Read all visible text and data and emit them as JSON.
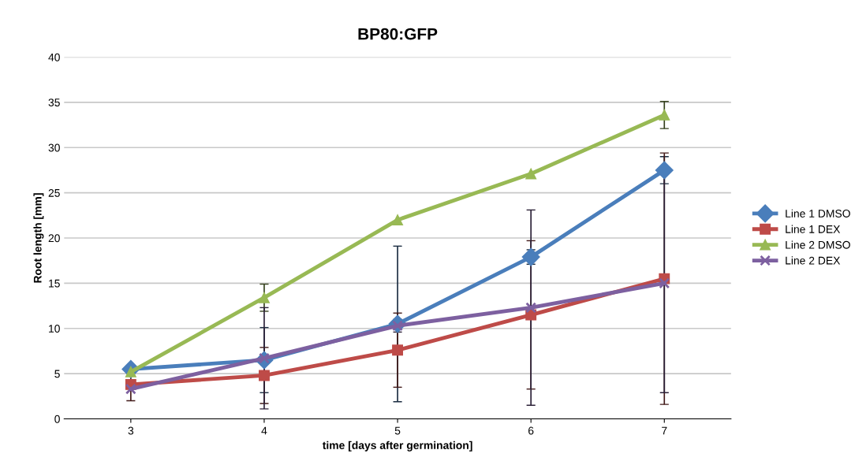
{
  "chart_data": {
    "type": "line",
    "title": "BP80:GFP",
    "xlabel": "time [days after germination]",
    "ylabel": "Root length [mm]",
    "categories": [
      "3",
      "4",
      "5",
      "6",
      "7"
    ],
    "series": [
      {
        "name": "Line 1 DMSO",
        "color": "#4a7ebb",
        "marker": "diamond",
        "values": [
          5.5,
          6.5,
          10.5,
          17.9,
          27.5
        ],
        "errors": [
          null,
          3.6,
          8.6,
          0.8,
          1.5
        ]
      },
      {
        "name": "Line 1 DEX",
        "color": "#be4b48",
        "marker": "square",
        "values": [
          3.8,
          4.8,
          7.6,
          11.5,
          15.5
        ],
        "errors": [
          1.8,
          3.1,
          4.1,
          8.2,
          13.9
        ]
      },
      {
        "name": "Line 2 DMSO",
        "color": "#98b954",
        "marker": "triangle",
        "values": [
          5.2,
          13.4,
          22.0,
          27.1,
          33.6
        ],
        "errors": [
          null,
          1.5,
          null,
          null,
          1.5
        ]
      },
      {
        "name": "Line 2 DEX",
        "color": "#7d60a0",
        "marker": "cross",
        "values": [
          3.3,
          6.7,
          10.3,
          12.3,
          15.0
        ],
        "errors": [
          null,
          5.6,
          0.7,
          10.8,
          12.1
        ]
      }
    ],
    "ylim": [
      0,
      40
    ],
    "yticks": [
      0,
      5,
      10,
      15,
      20,
      25,
      30,
      35,
      40
    ],
    "grid": "y",
    "legend": "right"
  }
}
